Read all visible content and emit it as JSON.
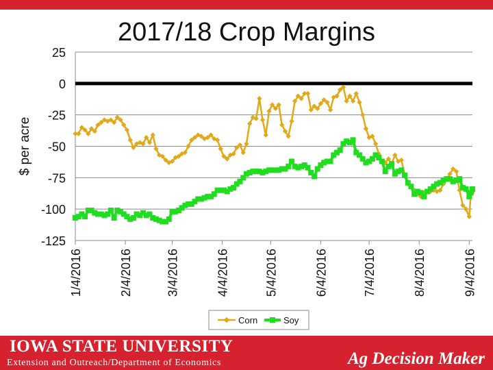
{
  "page": {
    "footer_university": "IOWA STATE UNIVERSITY",
    "footer_extension": "Extension and Outreach/Department of Economics",
    "footer_brand": "Ag Decision Maker"
  },
  "colors": {
    "corn": "#e1a818",
    "soy": "#20dd20",
    "zero_line": "#000000",
    "brand_red": "#d6222f"
  },
  "chart_data": {
    "type": "line",
    "title": "2017/18 Crop Margins",
    "ylabel": "$ per acre",
    "xlabel": "",
    "ylim": [
      -125,
      25
    ],
    "yticks": [
      25,
      0,
      -25,
      -50,
      -75,
      -100,
      -125
    ],
    "xlim": [
      "2016-01-04",
      "2016-09-06"
    ],
    "xtick_labels": [
      "1/4/2016",
      "2/4/2016",
      "3/4/2016",
      "4/4/2016",
      "5/4/2016",
      "6/4/2016",
      "7/4/2016",
      "8/4/2016",
      "9/4/2016"
    ],
    "xtick_dates": [
      "2016-01-04",
      "2016-02-04",
      "2016-03-04",
      "2016-04-04",
      "2016-05-04",
      "2016-06-04",
      "2016-07-04",
      "2016-08-04",
      "2016-09-04"
    ],
    "grid": true,
    "reference_line": 0,
    "legend": "bottom",
    "series": [
      {
        "name": "Corn",
        "points": [
          [
            "2016-01-04",
            -40
          ],
          [
            "2016-01-06",
            -40
          ],
          [
            "2016-01-08",
            -35
          ],
          [
            "2016-01-10",
            -37
          ],
          [
            "2016-01-12",
            -40
          ],
          [
            "2016-01-14",
            -36
          ],
          [
            "2016-01-16",
            -38
          ],
          [
            "2016-01-18",
            -33
          ],
          [
            "2016-01-20",
            -31
          ],
          [
            "2016-01-22",
            -29
          ],
          [
            "2016-01-24",
            -30
          ],
          [
            "2016-01-26",
            -29
          ],
          [
            "2016-01-28",
            -31
          ],
          [
            "2016-01-30",
            -27
          ],
          [
            "2016-02-01",
            -29
          ],
          [
            "2016-02-03",
            -33
          ],
          [
            "2016-02-05",
            -37
          ],
          [
            "2016-02-07",
            -45
          ],
          [
            "2016-02-09",
            -51
          ],
          [
            "2016-02-11",
            -48
          ],
          [
            "2016-02-13",
            -47
          ],
          [
            "2016-02-15",
            -48
          ],
          [
            "2016-02-17",
            -43
          ],
          [
            "2016-02-19",
            -47
          ],
          [
            "2016-02-21",
            -41
          ],
          [
            "2016-02-23",
            -52
          ],
          [
            "2016-02-25",
            -57
          ],
          [
            "2016-02-27",
            -58
          ],
          [
            "2016-02-29",
            -61
          ],
          [
            "2016-03-02",
            -63
          ],
          [
            "2016-03-04",
            -62
          ],
          [
            "2016-03-06",
            -59
          ],
          [
            "2016-03-08",
            -58
          ],
          [
            "2016-03-10",
            -56
          ],
          [
            "2016-03-12",
            -55
          ],
          [
            "2016-03-14",
            -50
          ],
          [
            "2016-03-16",
            -45
          ],
          [
            "2016-03-18",
            -43
          ],
          [
            "2016-03-20",
            -41
          ],
          [
            "2016-03-22",
            -42
          ],
          [
            "2016-03-24",
            -44
          ],
          [
            "2016-03-26",
            -43
          ],
          [
            "2016-03-28",
            -41
          ],
          [
            "2016-03-30",
            -44
          ],
          [
            "2016-04-01",
            -45
          ],
          [
            "2016-04-03",
            -52
          ],
          [
            "2016-04-05",
            -58
          ],
          [
            "2016-04-07",
            -60
          ],
          [
            "2016-04-09",
            -57
          ],
          [
            "2016-04-11",
            -56
          ],
          [
            "2016-04-13",
            -51
          ],
          [
            "2016-04-15",
            -49
          ],
          [
            "2016-04-17",
            -55
          ],
          [
            "2016-04-19",
            -48
          ],
          [
            "2016-04-21",
            -32
          ],
          [
            "2016-04-23",
            -27
          ],
          [
            "2016-04-25",
            -28
          ],
          [
            "2016-04-27",
            -12
          ],
          [
            "2016-04-29",
            -29
          ],
          [
            "2016-05-01",
            -41
          ],
          [
            "2016-05-03",
            -22
          ],
          [
            "2016-05-05",
            -17
          ],
          [
            "2016-05-07",
            -20
          ],
          [
            "2016-05-09",
            -17
          ],
          [
            "2016-05-11",
            -33
          ],
          [
            "2016-05-13",
            -38
          ],
          [
            "2016-05-15",
            -42
          ],
          [
            "2016-05-17",
            -30
          ],
          [
            "2016-05-19",
            -14
          ],
          [
            "2016-05-21",
            -10
          ],
          [
            "2016-05-23",
            -12
          ],
          [
            "2016-05-25",
            -8
          ],
          [
            "2016-05-27",
            -8
          ],
          [
            "2016-05-29",
            -21
          ],
          [
            "2016-05-31",
            -18
          ],
          [
            "2016-06-02",
            -20
          ],
          [
            "2016-06-04",
            -16
          ],
          [
            "2016-06-06",
            -13
          ],
          [
            "2016-06-08",
            -15
          ],
          [
            "2016-06-10",
            -21
          ],
          [
            "2016-06-12",
            -11
          ],
          [
            "2016-06-14",
            -10
          ],
          [
            "2016-06-16",
            -5
          ],
          [
            "2016-06-18",
            -3
          ],
          [
            "2016-06-20",
            -14
          ],
          [
            "2016-06-22",
            -10
          ],
          [
            "2016-06-24",
            -14
          ],
          [
            "2016-06-26",
            -8
          ],
          [
            "2016-06-28",
            -15
          ],
          [
            "2016-06-30",
            -25
          ],
          [
            "2016-07-02",
            -36
          ],
          [
            "2016-07-04",
            -43
          ],
          [
            "2016-07-06",
            -42
          ],
          [
            "2016-07-08",
            -48
          ],
          [
            "2016-07-10",
            -56
          ],
          [
            "2016-07-12",
            -62
          ],
          [
            "2016-07-14",
            -63
          ],
          [
            "2016-07-16",
            -60
          ],
          [
            "2016-07-18",
            -64
          ],
          [
            "2016-07-20",
            -57
          ],
          [
            "2016-07-22",
            -62
          ],
          [
            "2016-07-24",
            -61
          ],
          [
            "2016-07-26",
            -73
          ],
          [
            "2016-07-28",
            -80
          ],
          [
            "2016-07-30",
            -82
          ],
          [
            "2016-08-01",
            -85
          ],
          [
            "2016-08-03",
            -88
          ],
          [
            "2016-08-05",
            -90
          ],
          [
            "2016-08-07",
            -87
          ],
          [
            "2016-08-09",
            -86
          ],
          [
            "2016-08-11",
            -86
          ],
          [
            "2016-08-13",
            -85
          ],
          [
            "2016-08-15",
            -86
          ],
          [
            "2016-08-17",
            -85
          ],
          [
            "2016-08-19",
            -80
          ],
          [
            "2016-08-21",
            -76
          ],
          [
            "2016-08-23",
            -72
          ],
          [
            "2016-08-25",
            -68
          ],
          [
            "2016-08-27",
            -70
          ],
          [
            "2016-08-29",
            -85
          ],
          [
            "2016-08-31",
            -97
          ],
          [
            "2016-09-02",
            -100
          ],
          [
            "2016-09-04",
            -106
          ],
          [
            "2016-09-05",
            -88
          ],
          [
            "2016-09-06",
            -87
          ]
        ]
      },
      {
        "name": "Soy",
        "points": [
          [
            "2016-01-04",
            -107
          ],
          [
            "2016-01-06",
            -106
          ],
          [
            "2016-01-08",
            -104
          ],
          [
            "2016-01-10",
            -106
          ],
          [
            "2016-01-12",
            -101
          ],
          [
            "2016-01-14",
            -101
          ],
          [
            "2016-01-16",
            -103
          ],
          [
            "2016-01-18",
            -104
          ],
          [
            "2016-01-20",
            -104
          ],
          [
            "2016-01-22",
            -105
          ],
          [
            "2016-01-24",
            -104
          ],
          [
            "2016-01-26",
            -101
          ],
          [
            "2016-01-28",
            -107
          ],
          [
            "2016-01-30",
            -101
          ],
          [
            "2016-02-01",
            -102
          ],
          [
            "2016-02-03",
            -104
          ],
          [
            "2016-02-05",
            -106
          ],
          [
            "2016-02-07",
            -108
          ],
          [
            "2016-02-09",
            -107
          ],
          [
            "2016-02-11",
            -104
          ],
          [
            "2016-02-13",
            -105
          ],
          [
            "2016-02-15",
            -103
          ],
          [
            "2016-02-17",
            -105
          ],
          [
            "2016-02-19",
            -104
          ],
          [
            "2016-02-21",
            -107
          ],
          [
            "2016-02-23",
            -108
          ],
          [
            "2016-02-25",
            -109
          ],
          [
            "2016-02-27",
            -110
          ],
          [
            "2016-02-29",
            -110
          ],
          [
            "2016-03-02",
            -108
          ],
          [
            "2016-03-04",
            -102
          ],
          [
            "2016-03-06",
            -102
          ],
          [
            "2016-03-08",
            -101
          ],
          [
            "2016-03-10",
            -99
          ],
          [
            "2016-03-12",
            -97
          ],
          [
            "2016-03-14",
            -96
          ],
          [
            "2016-03-16",
            -96
          ],
          [
            "2016-03-18",
            -94
          ],
          [
            "2016-03-20",
            -92
          ],
          [
            "2016-03-22",
            -92
          ],
          [
            "2016-03-24",
            -91
          ],
          [
            "2016-03-26",
            -90
          ],
          [
            "2016-03-28",
            -90
          ],
          [
            "2016-03-30",
            -88
          ],
          [
            "2016-04-01",
            -85
          ],
          [
            "2016-04-03",
            -85
          ],
          [
            "2016-04-05",
            -85
          ],
          [
            "2016-04-07",
            -86
          ],
          [
            "2016-04-09",
            -84
          ],
          [
            "2016-04-11",
            -83
          ],
          [
            "2016-04-13",
            -80
          ],
          [
            "2016-04-15",
            -78
          ],
          [
            "2016-04-17",
            -75
          ],
          [
            "2016-04-19",
            -72
          ],
          [
            "2016-04-21",
            -71
          ],
          [
            "2016-04-23",
            -70
          ],
          [
            "2016-04-25",
            -70
          ],
          [
            "2016-04-27",
            -70
          ],
          [
            "2016-04-29",
            -71
          ],
          [
            "2016-05-01",
            -70
          ],
          [
            "2016-05-03",
            -69
          ],
          [
            "2016-05-05",
            -69
          ],
          [
            "2016-05-07",
            -69
          ],
          [
            "2016-05-09",
            -69
          ],
          [
            "2016-05-11",
            -68
          ],
          [
            "2016-05-13",
            -68
          ],
          [
            "2016-05-15",
            -66
          ],
          [
            "2016-05-17",
            -62
          ],
          [
            "2016-05-19",
            -66
          ],
          [
            "2016-05-21",
            -67
          ],
          [
            "2016-05-23",
            -66
          ],
          [
            "2016-05-25",
            -65
          ],
          [
            "2016-05-27",
            -67
          ],
          [
            "2016-05-29",
            -71
          ],
          [
            "2016-05-31",
            -74
          ],
          [
            "2016-06-02",
            -68
          ],
          [
            "2016-06-04",
            -65
          ],
          [
            "2016-06-06",
            -63
          ],
          [
            "2016-06-08",
            -62
          ],
          [
            "2016-06-10",
            -62
          ],
          [
            "2016-06-12",
            -57
          ],
          [
            "2016-06-14",
            -55
          ],
          [
            "2016-06-16",
            -53
          ],
          [
            "2016-06-18",
            -48
          ],
          [
            "2016-06-20",
            -46
          ],
          [
            "2016-06-22",
            -47
          ],
          [
            "2016-06-24",
            -45
          ],
          [
            "2016-06-26",
            -55
          ],
          [
            "2016-06-28",
            -57
          ],
          [
            "2016-06-30",
            -60
          ],
          [
            "2016-07-02",
            -63
          ],
          [
            "2016-07-04",
            -62
          ],
          [
            "2016-07-06",
            -60
          ],
          [
            "2016-07-08",
            -57
          ],
          [
            "2016-07-10",
            -59
          ],
          [
            "2016-07-12",
            -62
          ],
          [
            "2016-07-14",
            -70
          ],
          [
            "2016-07-16",
            -66
          ],
          [
            "2016-07-18",
            -64
          ],
          [
            "2016-07-20",
            -72
          ],
          [
            "2016-07-22",
            -70
          ],
          [
            "2016-07-24",
            -69
          ],
          [
            "2016-07-26",
            -73
          ],
          [
            "2016-07-28",
            -79
          ],
          [
            "2016-07-30",
            -82
          ],
          [
            "2016-08-01",
            -88
          ],
          [
            "2016-08-03",
            -86
          ],
          [
            "2016-08-05",
            -87
          ],
          [
            "2016-08-07",
            -90
          ],
          [
            "2016-08-09",
            -86
          ],
          [
            "2016-08-11",
            -84
          ],
          [
            "2016-08-13",
            -82
          ],
          [
            "2016-08-15",
            -80
          ],
          [
            "2016-08-17",
            -79
          ],
          [
            "2016-08-19",
            -77
          ],
          [
            "2016-08-21",
            -76
          ],
          [
            "2016-08-23",
            -76
          ],
          [
            "2016-08-25",
            -78
          ],
          [
            "2016-08-27",
            -77
          ],
          [
            "2016-08-29",
            -76
          ],
          [
            "2016-08-31",
            -83
          ],
          [
            "2016-09-02",
            -84
          ],
          [
            "2016-09-04",
            -90
          ],
          [
            "2016-09-05",
            -87
          ],
          [
            "2016-09-06",
            -84
          ]
        ]
      }
    ]
  }
}
